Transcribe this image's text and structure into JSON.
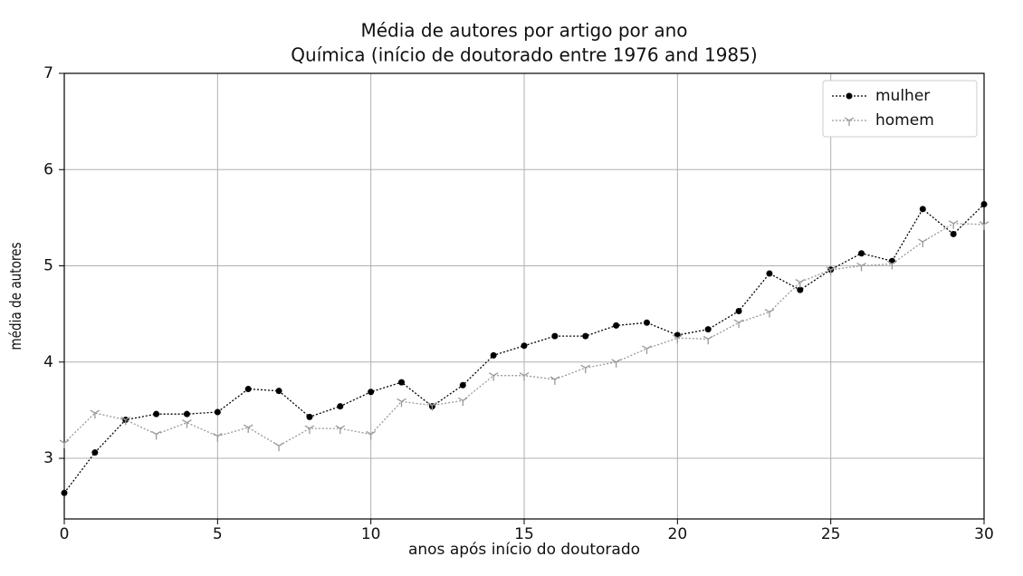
{
  "chart_data": {
    "type": "line",
    "title": [
      "Média de autores por artigo por ano",
      "Química (início de doutorado entre 1976 and 1985)"
    ],
    "x_label": "anos após início do doutorado",
    "y_label": "média de autores",
    "x": [
      0,
      1,
      2,
      3,
      4,
      5,
      6,
      7,
      8,
      9,
      10,
      11,
      12,
      13,
      14,
      15,
      16,
      17,
      18,
      19,
      20,
      21,
      22,
      23,
      24,
      25,
      26,
      27,
      28,
      29,
      30
    ],
    "series": [
      {
        "name": "mulher",
        "color": "#000000",
        "marker": "circle",
        "values": [
          2.64,
          3.06,
          3.4,
          3.46,
          3.46,
          3.48,
          3.72,
          3.7,
          3.43,
          3.54,
          3.69,
          3.79,
          3.54,
          3.76,
          4.07,
          4.17,
          4.27,
          4.27,
          4.38,
          4.41,
          4.28,
          4.34,
          4.53,
          4.92,
          4.75,
          4.96,
          5.13,
          5.05,
          5.59,
          5.33,
          5.64
        ]
      },
      {
        "name": "homem",
        "color": "#999999",
        "marker": "tri_down",
        "values": [
          3.16,
          3.47,
          3.4,
          3.25,
          3.37,
          3.23,
          3.32,
          3.13,
          3.31,
          3.31,
          3.25,
          3.59,
          3.55,
          3.6,
          3.86,
          3.86,
          3.82,
          3.94,
          4.0,
          4.14,
          4.25,
          4.24,
          4.41,
          4.52,
          4.83,
          4.96,
          5.0,
          5.02,
          5.25,
          5.44,
          5.43
        ]
      }
    ],
    "xlim": [
      0,
      30
    ],
    "xticks": [
      0,
      5,
      10,
      15,
      20,
      25,
      30
    ],
    "ylim": [
      2.37,
      7
    ],
    "yticks": [
      3,
      4,
      5,
      6,
      7
    ],
    "grid": true,
    "legend": "upper right"
  }
}
